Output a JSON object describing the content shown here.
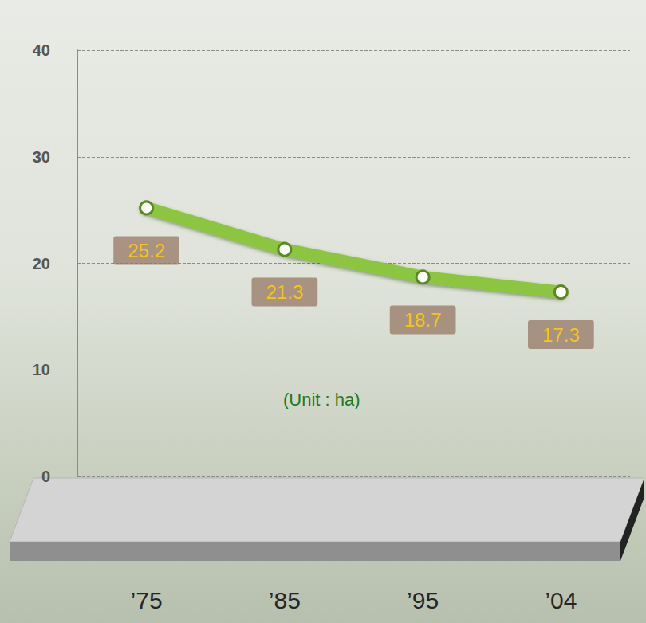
{
  "chart_data": {
    "type": "line",
    "categories": [
      "’75",
      "’85",
      "’95",
      "’04"
    ],
    "values": [
      25.2,
      21.3,
      18.7,
      17.3
    ],
    "color": "#8cc63f",
    "ylim": [
      0,
      40
    ],
    "yticks": [
      0,
      10,
      20,
      30,
      40
    ],
    "grid": true,
    "data_labels": true,
    "annotation": "(Unit : ha)"
  }
}
